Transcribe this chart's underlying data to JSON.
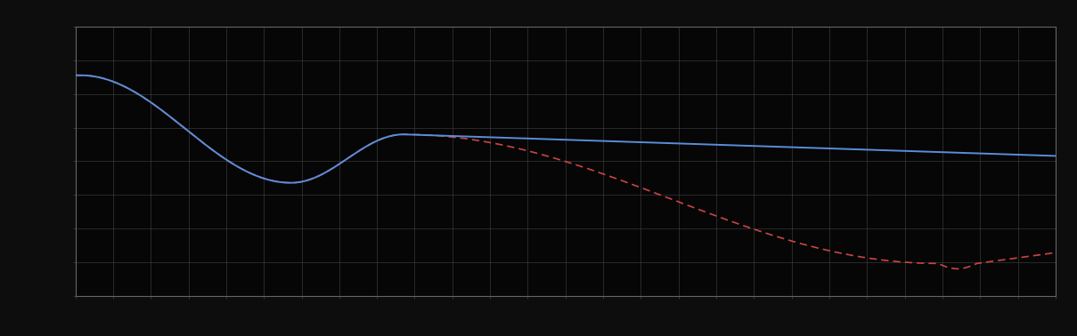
{
  "background_color": "#0d0d0d",
  "plot_bg_color": "#060606",
  "grid_color": "#444444",
  "fig_width": 12.09,
  "fig_height": 3.78,
  "dpi": 100,
  "blue_line_color": "#5b8dd9",
  "red_line_color": "#cc4444",
  "spine_color": "#666666",
  "n_xticks": 27,
  "n_yticks": 9
}
